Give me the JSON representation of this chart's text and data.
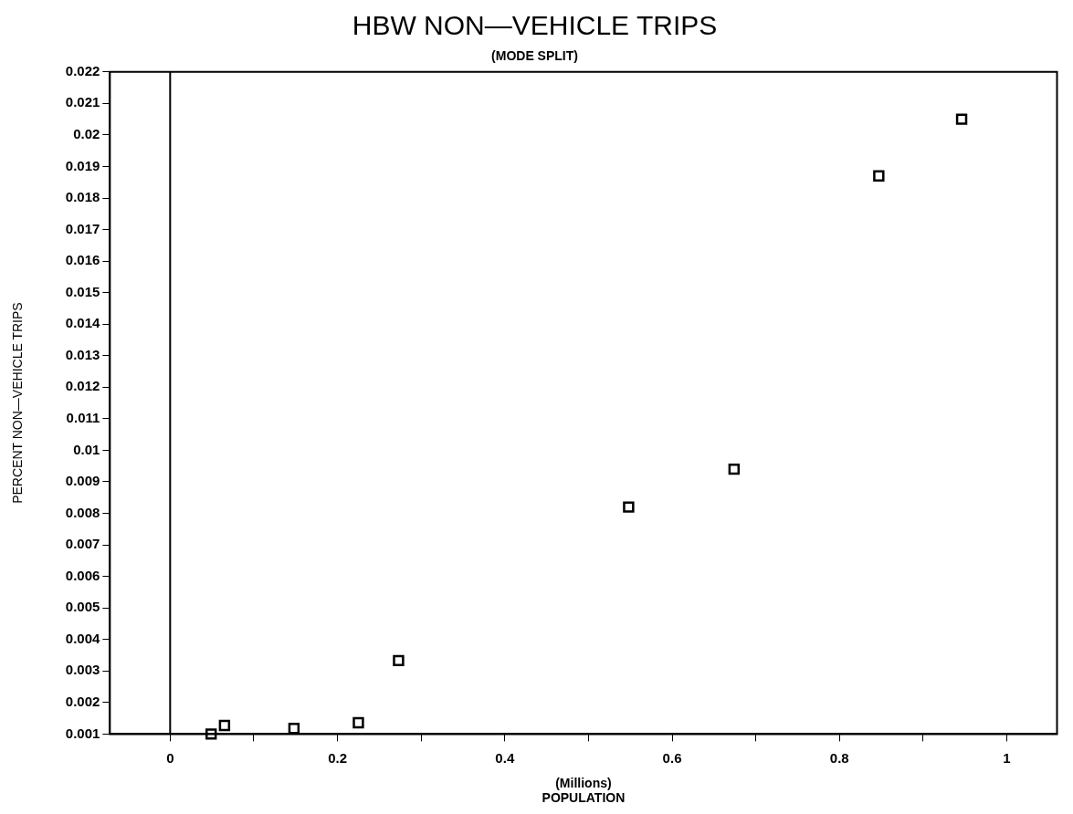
{
  "chart_data": {
    "type": "scatter",
    "title": "HBW NON—VEHICLE TRIPS",
    "subtitle": "(MODE SPLIT)",
    "xlabel": "(Millions)\nPOPULATION",
    "ylabel": "PERCENT NON—VEHICLE TRIPS",
    "series": [
      {
        "color": "#000000",
        "x": [
          0.049,
          0.065,
          0.148,
          0.225,
          0.273,
          0.548,
          0.674,
          0.847,
          0.946
        ],
        "values": [
          0.001,
          0.00127,
          0.00118,
          0.00136,
          0.00333,
          0.0082,
          0.0094,
          0.0187,
          0.0205
        ]
      }
    ],
    "marker": "square",
    "grid": false,
    "legend": false,
    "xlim": [
      -0.072,
      1.06
    ],
    "xticks": [
      0,
      {
        "value": 0.1,
        "label": null
      },
      0.2,
      {
        "value": 0.3,
        "label": null
      },
      0.4,
      {
        "value": 0.5,
        "label": null
      },
      0.6,
      {
        "value": 0.7,
        "label": null
      },
      0.8,
      {
        "value": 0.9,
        "label": null
      },
      1
    ],
    "ylim": [
      0.001,
      0.022
    ],
    "yticks": [
      0.001,
      0.002,
      0.003,
      0.004,
      0.005,
      0.006,
      0.007,
      0.008,
      0.009,
      0.01,
      0.011,
      0.012,
      0.013,
      0.014,
      0.015,
      0.016,
      0.017,
      0.018,
      0.019,
      0.02,
      0.021,
      0.022
    ],
    "ref_lines": [
      {
        "axis": "x",
        "value": 0,
        "color": "#000000"
      }
    ]
  }
}
